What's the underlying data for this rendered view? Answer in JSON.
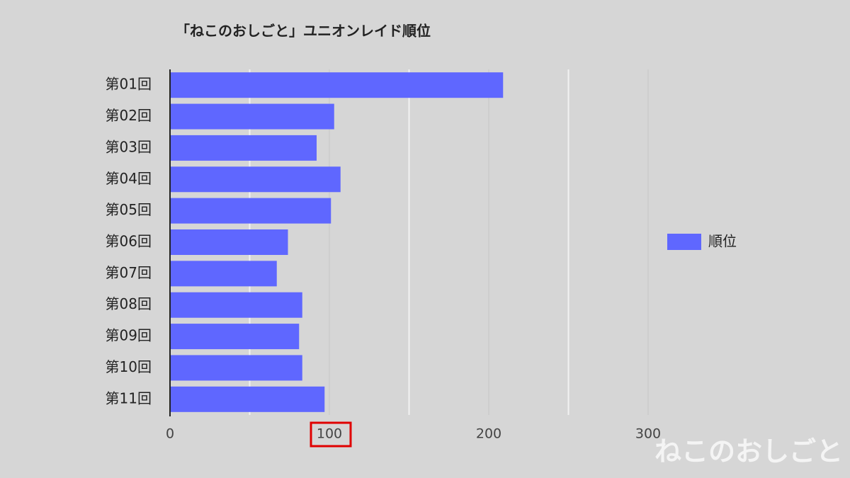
{
  "chart_data": {
    "type": "hbar",
    "title": "「ねこのおしごと」ユニオンレイド順位",
    "categories": [
      "第01回",
      "第02回",
      "第03回",
      "第04回",
      "第05回",
      "第06回",
      "第07回",
      "第08回",
      "第09回",
      "第10回",
      "第11回"
    ],
    "series": [
      {
        "name": "順位",
        "color": "#5f67ff",
        "values": [
          209,
          103,
          92,
          107,
          101,
          74,
          67,
          83,
          81,
          83,
          97
        ]
      }
    ],
    "xlim": [
      0,
      300
    ],
    "xticks": [
      0,
      100,
      200,
      300
    ],
    "x_minor_ticks": [
      50,
      150,
      250
    ],
    "grid": true,
    "legend": "right",
    "watermark": "ねこのおしごと"
  }
}
